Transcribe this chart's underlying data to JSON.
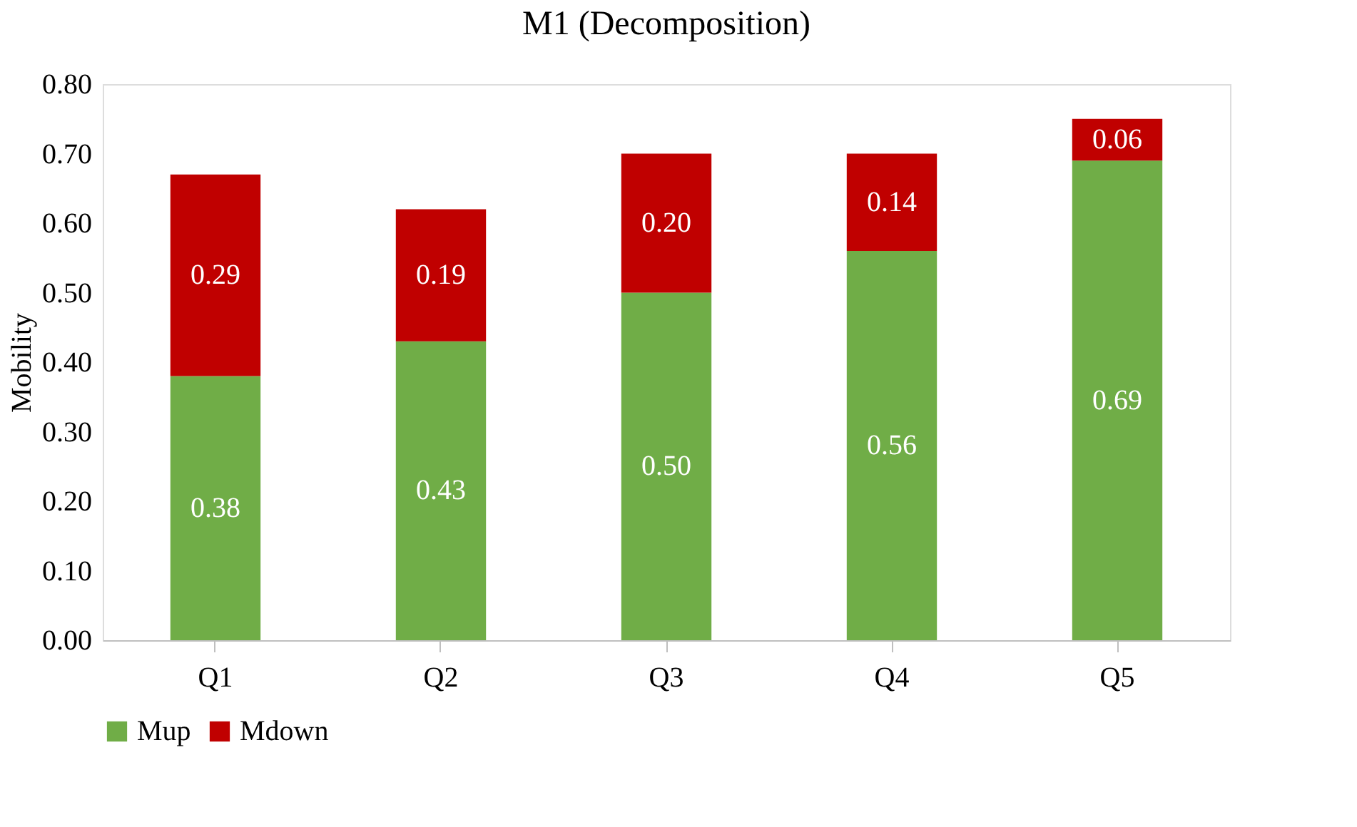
{
  "chart_data": {
    "type": "bar",
    "title": "M1 (Decomposition)",
    "ylabel": "Mobility",
    "categories": [
      "Q1",
      "Q2",
      "Q3",
      "Q4",
      "Q5"
    ],
    "series": [
      {
        "name": "Mup",
        "color": "#70ad47",
        "values": [
          0.38,
          0.43,
          0.5,
          0.56,
          0.69
        ],
        "value_labels": [
          "0.38",
          "0.43",
          "0.50",
          "0.56",
          "0.69"
        ]
      },
      {
        "name": "Mdown",
        "color": "#c00000",
        "values": [
          0.29,
          0.19,
          0.2,
          0.14,
          0.06
        ],
        "value_labels": [
          "0.29",
          "0.19",
          "0.20",
          "0.14",
          "0.06"
        ]
      }
    ],
    "stacked": true,
    "ylim": [
      0,
      0.8
    ],
    "yticks": [
      {
        "value": 0,
        "label": "0.00"
      },
      {
        "value": 0.1,
        "label": "0.10"
      },
      {
        "value": 0.2,
        "label": "0.20"
      },
      {
        "value": 0.3,
        "label": "0.30"
      },
      {
        "value": 0.4,
        "label": "0.40"
      },
      {
        "value": 0.5,
        "label": "0.50"
      },
      {
        "value": 0.6,
        "label": "0.60"
      },
      {
        "value": 0.7,
        "label": "0.70"
      },
      {
        "value": 0.8,
        "label": "0.80"
      }
    ],
    "grid": false,
    "legend": "bottom"
  }
}
